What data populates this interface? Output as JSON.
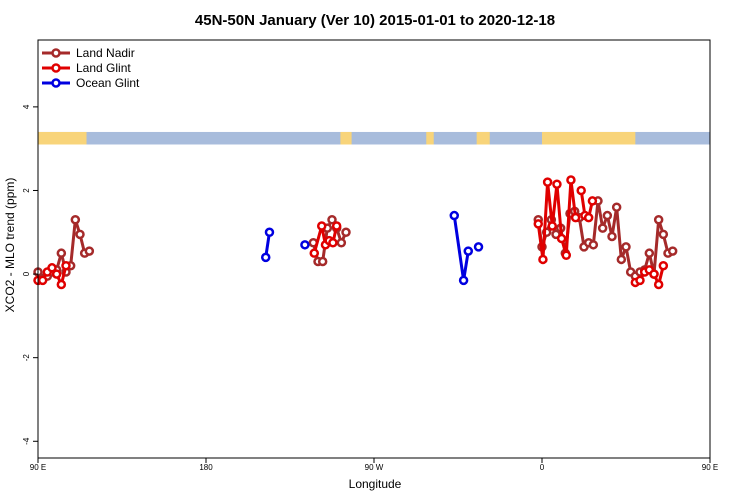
{
  "chart_data": {
    "type": "line",
    "title": "45N-50N January (Ver 10)   2015-01-01 to 2020-12-18",
    "xlabel": "Longitude",
    "ylabel": "XCO2 - MLO trend (ppm)",
    "xlim": [
      90,
      450
    ],
    "ylim": [
      -4.4,
      5.6
    ],
    "x_ticks": [
      {
        "value": 90,
        "label": "90 E"
      },
      {
        "value": 180,
        "label": "180"
      },
      {
        "value": 270,
        "label": "90 W"
      },
      {
        "value": 360,
        "label": "0"
      },
      {
        "value": 450,
        "label": "90 E"
      },
      {
        "value": 540,
        "label": "180"
      }
    ],
    "y_ticks": [
      {
        "value": -4,
        "label": "-4"
      },
      {
        "value": -2,
        "label": "-2"
      },
      {
        "value": 0,
        "label": "0"
      },
      {
        "value": 2,
        "label": "2"
      },
      {
        "value": 4,
        "label": "4"
      }
    ],
    "legend": "top-left",
    "grid": false,
    "land_strip": {
      "y_bottom": 3.1,
      "y_top": 3.4,
      "land_color": "#f8d47a",
      "ocean_color": "#a8bcdc"
    },
    "series": [
      {
        "name": "Land Nadir",
        "color": "#a52a2a",
        "segments": [
          [
            [
              90,
              0.05
            ],
            [
              92.5,
              -0.1
            ],
            [
              95,
              -0.05
            ],
            [
              97.5,
              0.05
            ],
            [
              100,
              0.1
            ],
            [
              102.5,
              0.5
            ],
            [
              105,
              0.05
            ],
            [
              107.5,
              0.2
            ],
            [
              110,
              1.3
            ],
            [
              112.5,
              0.95
            ],
            [
              115,
              0.5
            ],
            [
              117.5,
              0.55
            ]
          ],
          [
            [
              237.5,
              0.75
            ],
            [
              240,
              0.3
            ],
            [
              242.5,
              0.3
            ],
            [
              245,
              1.1
            ],
            [
              247.5,
              1.3
            ],
            [
              250,
              1.1
            ],
            [
              252.5,
              0.75
            ],
            [
              255,
              1.0
            ]
          ],
          [
            [
              358,
              1.3
            ],
            [
              360,
              0.65
            ],
            [
              362.5,
              1.0
            ],
            [
              365,
              1.3
            ],
            [
              367.5,
              0.95
            ],
            [
              370,
              1.1
            ],
            [
              372.5,
              0.5
            ],
            [
              375,
              1.45
            ],
            [
              377.5,
              1.5
            ],
            [
              380,
              1.35
            ],
            [
              382.5,
              0.65
            ],
            [
              385,
              0.75
            ],
            [
              387.5,
              0.7
            ],
            [
              390,
              1.75
            ],
            [
              392.5,
              1.1
            ],
            [
              395,
              1.4
            ],
            [
              397.5,
              0.9
            ],
            [
              400,
              1.6
            ],
            [
              402.5,
              0.35
            ],
            [
              405,
              0.65
            ],
            [
              407.5,
              0.05
            ],
            [
              410,
              -0.05
            ],
            [
              412.5,
              0.05
            ],
            [
              415,
              0.1
            ],
            [
              417.5,
              0.5
            ],
            [
              420,
              0.0
            ],
            [
              422.5,
              1.3
            ],
            [
              425,
              0.95
            ],
            [
              427.5,
              0.5
            ],
            [
              430,
              0.55
            ]
          ]
        ]
      },
      {
        "name": "Land Glint",
        "color": "#e00000",
        "segments": [
          [
            [
              90,
              -0.15
            ],
            [
              92.5,
              -0.15
            ],
            [
              95,
              0.05
            ],
            [
              97.5,
              0.15
            ],
            [
              100,
              0.0
            ],
            [
              102.5,
              -0.25
            ],
            [
              105,
              0.2
            ]
          ],
          [
            [
              238,
              0.5
            ],
            [
              242,
              1.15
            ],
            [
              244,
              0.7
            ],
            [
              246,
              0.8
            ],
            [
              248,
              0.75
            ],
            [
              250,
              1.15
            ]
          ],
          [
            [
              358,
              1.2
            ],
            [
              360.5,
              0.35
            ],
            [
              363,
              2.2
            ],
            [
              365.5,
              1.15
            ],
            [
              368,
              2.15
            ],
            [
              370.5,
              0.85
            ],
            [
              373,
              0.45
            ],
            [
              375.5,
              2.25
            ],
            [
              378,
              1.35
            ]
          ],
          [
            [
              381,
              2.0
            ],
            [
              383,
              1.4
            ],
            [
              385,
              1.35
            ],
            [
              387,
              1.75
            ]
          ],
          [
            [
              410,
              -0.2
            ],
            [
              412.5,
              -0.15
            ],
            [
              415,
              0.05
            ],
            [
              417.5,
              0.1
            ],
            [
              420,
              0.0
            ],
            [
              422.5,
              -0.25
            ],
            [
              425,
              0.2
            ]
          ]
        ]
      },
      {
        "name": "Ocean Glint",
        "color": "#0000e0",
        "segments": [
          [
            [
              212,
              0.4
            ],
            [
              214,
              1.0
            ]
          ],
          [
            [
              233,
              0.7
            ]
          ],
          [
            [
              313,
              1.4
            ],
            [
              318,
              -0.15
            ],
            [
              320.5,
              0.55
            ]
          ],
          [
            [
              326,
              0.65
            ]
          ]
        ]
      }
    ]
  }
}
